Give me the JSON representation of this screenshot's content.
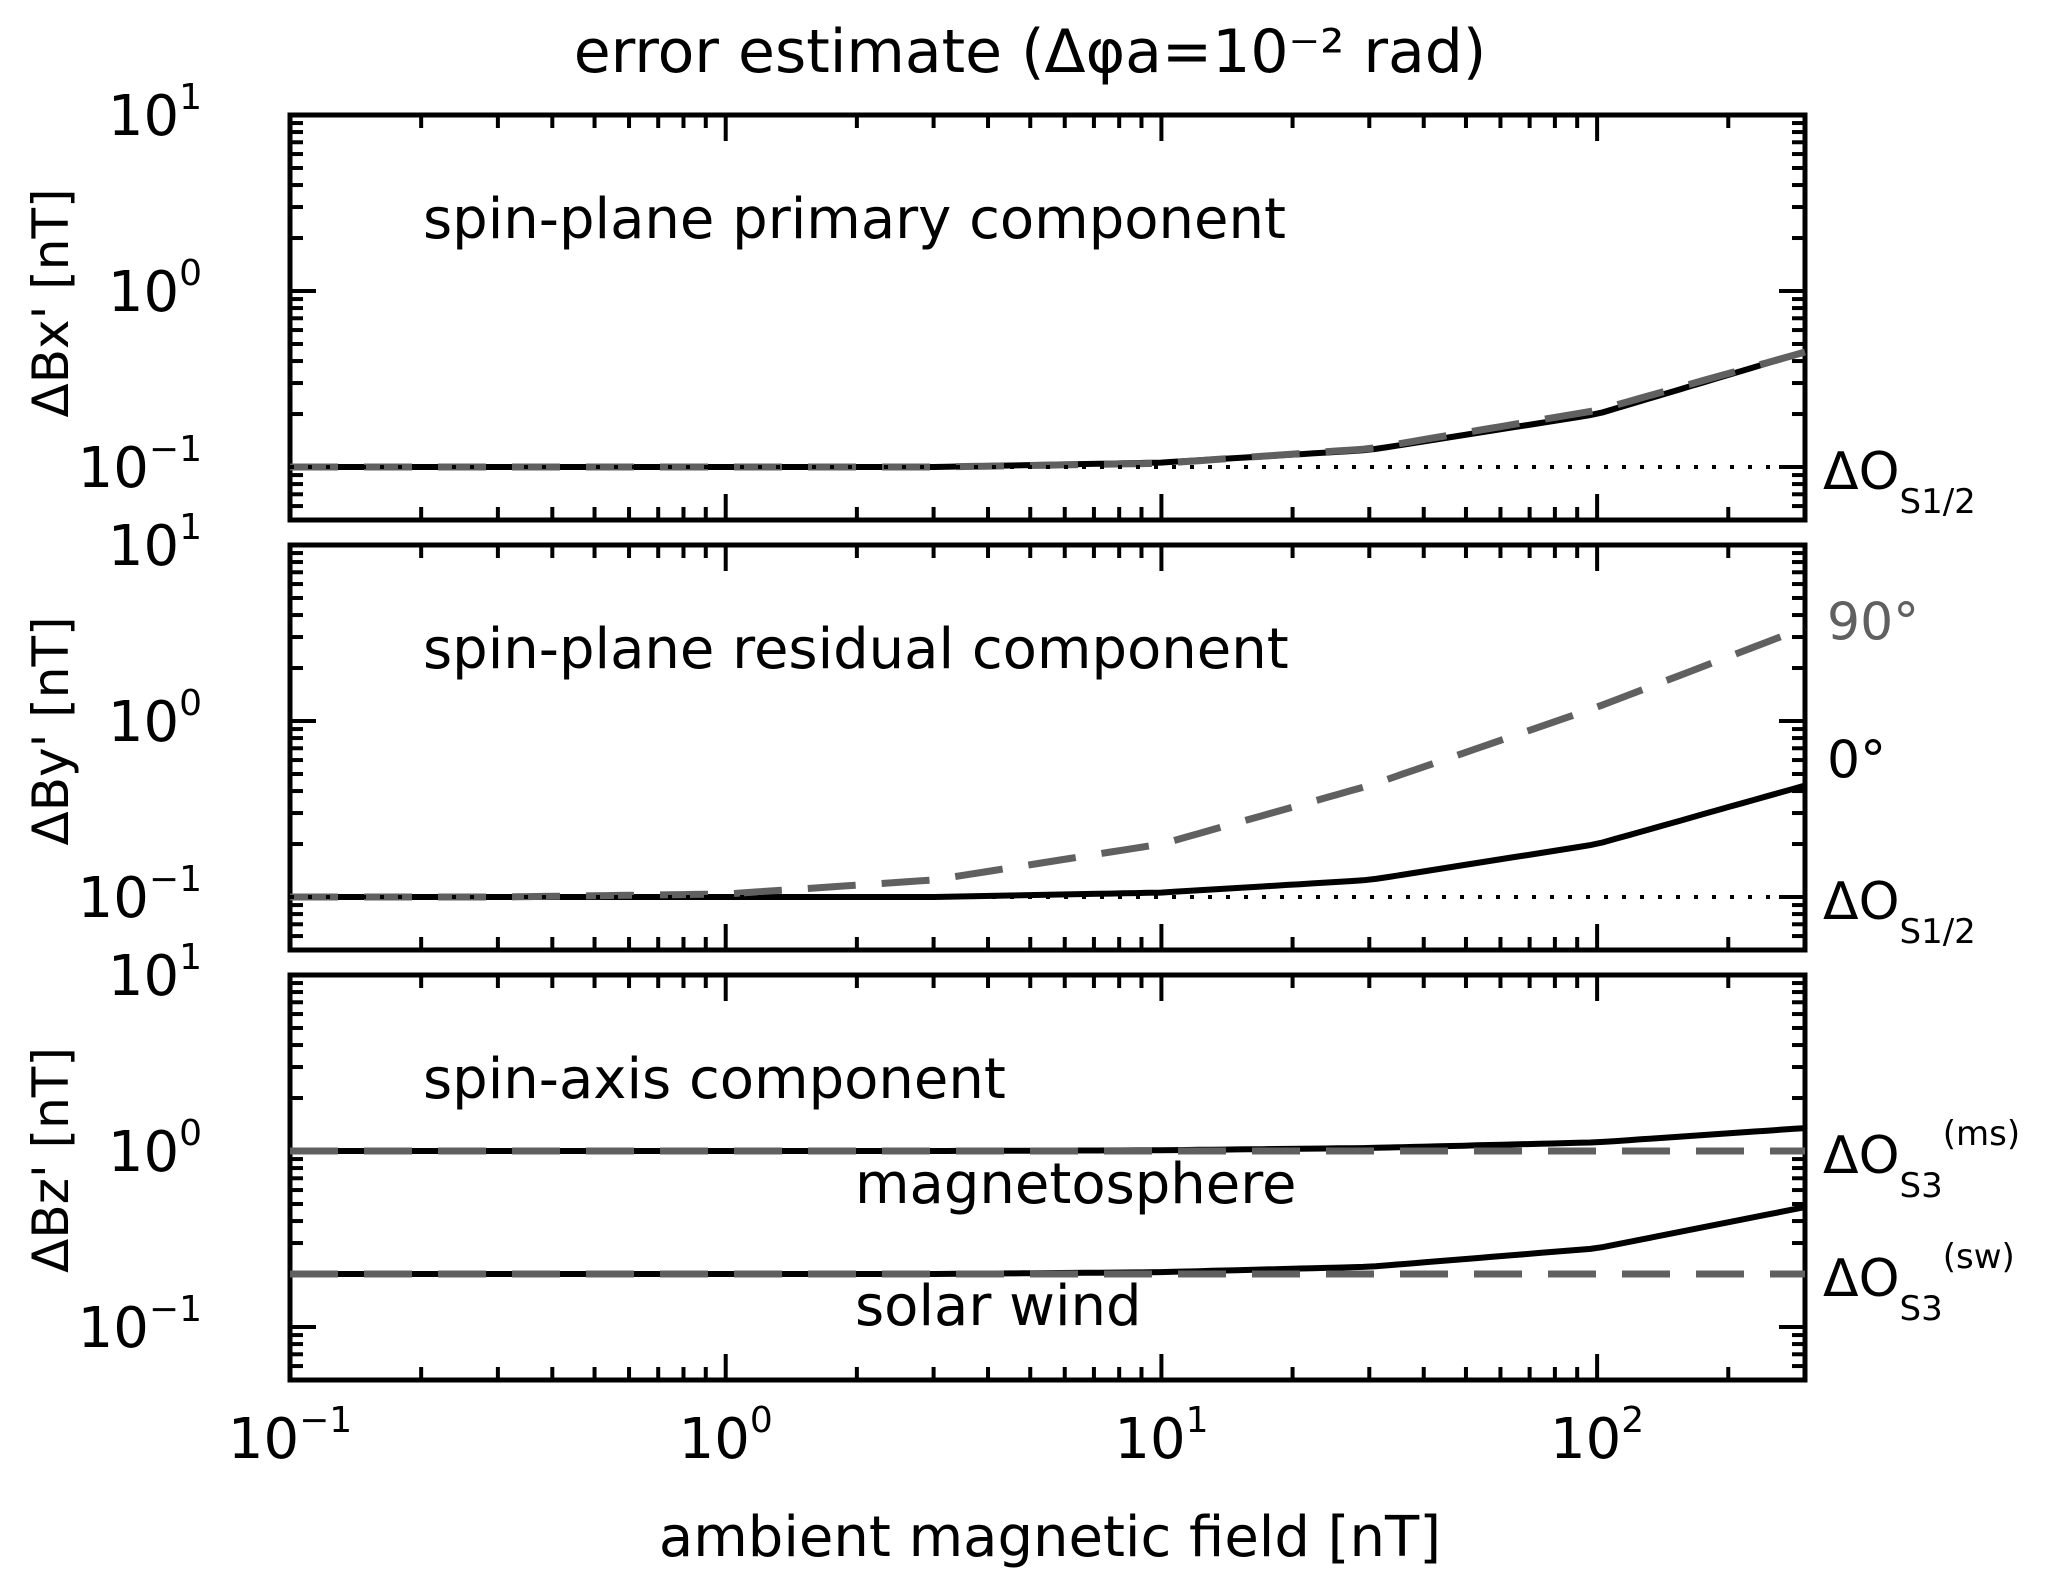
{
  "chart_data": {
    "type": "line",
    "title": "error estimate (Δφa=10⁻² rad)",
    "xlabel": "ambient magnetic field [nT]",
    "xscale": "log",
    "xlim": [
      0.1,
      300
    ],
    "x_ticks": [
      0.1,
      1,
      10,
      100
    ],
    "x_tick_labels": [
      "10⁻¹",
      "10⁰",
      "10¹",
      "10²"
    ],
    "x": [
      0.1,
      0.3,
      1,
      3,
      10,
      30,
      100,
      300
    ],
    "colors": {
      "solid": "#000000",
      "dashed": "#606060",
      "dotted": "#000000"
    },
    "panels": [
      {
        "ylabel": "ΔBx' [nT]",
        "yscale": "log",
        "ylim": [
          0.05,
          10
        ],
        "y_tick_labels": [
          "10⁻¹",
          "10⁰",
          "10¹"
        ],
        "annotation": "spin-plane primary component",
        "series": [
          {
            "style": "solid",
            "values": [
              0.1,
              0.1,
              0.1,
              0.1,
              0.106,
              0.125,
              0.2,
              0.45
            ]
          },
          {
            "style": "dashed",
            "values": [
              0.1,
              0.1,
              0.1,
              0.1,
              0.105,
              0.127,
              0.21,
              0.45
            ]
          },
          {
            "style": "dotted",
            "values": [
              0.1,
              0.1,
              0.1,
              0.1,
              0.1,
              0.1,
              0.1,
              0.1
            ]
          }
        ],
        "right_labels": [
          {
            "text": "ΔO",
            "sub": "S1/2",
            "sup": ""
          }
        ]
      },
      {
        "ylabel": "ΔBy' [nT]",
        "yscale": "log",
        "ylim": [
          0.05,
          10
        ],
        "y_tick_labels": [
          "10⁻¹",
          "10⁰",
          "10¹"
        ],
        "annotation": "spin-plane residual component",
        "series": [
          {
            "name": "0°",
            "style": "solid",
            "values": [
              0.1,
              0.1,
              0.1,
              0.1,
              0.106,
              0.125,
              0.2,
              0.43
            ]
          },
          {
            "name": "90°",
            "style": "dashed",
            "values": [
              0.1,
              0.1,
              0.104,
              0.125,
              0.2,
              0.43,
              1.2,
              3.4
            ]
          },
          {
            "style": "dotted",
            "values": [
              0.1,
              0.1,
              0.1,
              0.1,
              0.1,
              0.1,
              0.1,
              0.1
            ]
          }
        ],
        "right_labels": [
          {
            "text": "ΔO",
            "sub": "S1/2",
            "sup": ""
          }
        ]
      },
      {
        "ylabel": "ΔBz' [nT]",
        "yscale": "log",
        "ylim": [
          0.05,
          10
        ],
        "y_tick_labels": [
          "10⁻¹",
          "10⁰",
          "10¹"
        ],
        "annotation": "spin-axis component",
        "curve_labels": [
          "magnetosphere",
          "solar wind"
        ],
        "series": [
          {
            "style": "solid",
            "values": [
              1.0,
              1.0,
              1.0,
              1.0,
              1.01,
              1.04,
              1.12,
              1.35
            ]
          },
          {
            "style": "dashed",
            "values": [
              1.0,
              1.0,
              1.0,
              1.0,
              1.0,
              1.0,
              1.0,
              1.0
            ]
          },
          {
            "style": "solid",
            "values": [
              0.2,
              0.2,
              0.2,
              0.2,
              0.205,
              0.22,
              0.28,
              0.48
            ]
          },
          {
            "style": "dashed",
            "values": [
              0.2,
              0.2,
              0.2,
              0.2,
              0.2,
              0.2,
              0.2,
              0.2
            ]
          }
        ],
        "right_labels": [
          {
            "text": "ΔO",
            "sub": "S3",
            "sup": "(ms)"
          },
          {
            "text": "ΔO",
            "sub": "S3",
            "sup": "(sw)"
          }
        ]
      }
    ]
  }
}
